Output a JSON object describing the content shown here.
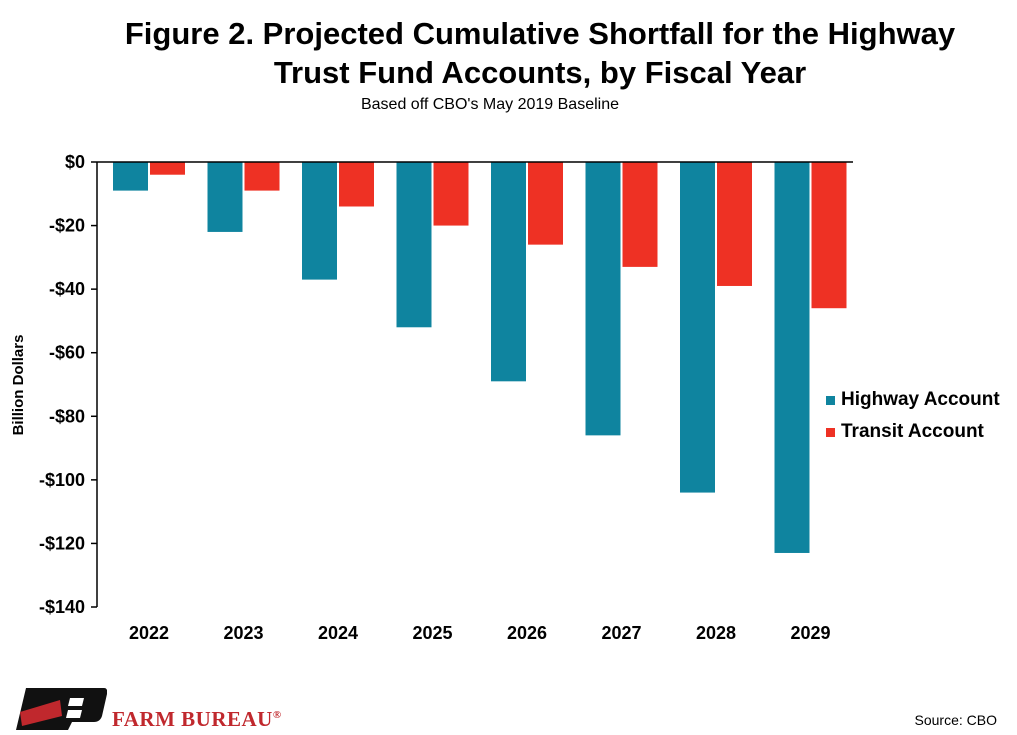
{
  "chart_data": {
    "type": "bar",
    "title": "Figure 2. Projected Cumulative Shortfall for the Highway Trust Fund Accounts, by Fiscal Year",
    "subtitle": "Based off CBO's May 2019 Baseline",
    "ylabel": "Billion  Dollars",
    "xlabel": "",
    "categories": [
      "2022",
      "2023",
      "2024",
      "2025",
      "2026",
      "2027",
      "2028",
      "2029"
    ],
    "series": [
      {
        "name": "Highway Account",
        "color": "#0f849f",
        "values": [
          -9,
          -22,
          -37,
          -52,
          -69,
          -86,
          -104,
          -123
        ]
      },
      {
        "name": "Transit Account",
        "color": "#ee3124",
        "values": [
          -4,
          -9,
          -14,
          -20,
          -26,
          -33,
          -39,
          -46
        ]
      }
    ],
    "ylim": [
      -140,
      0
    ],
    "yticks": [
      0,
      -20,
      -40,
      -60,
      -80,
      -100,
      -120,
      -140
    ],
    "ytick_labels": [
      "$0",
      "-$20",
      "-$40",
      "-$60",
      "-$80",
      "-$100",
      "-$120",
      "-$140"
    ],
    "grid": false,
    "legend_position": "right"
  },
  "title_line1": "Figure 2. Projected Cumulative Shortfall for the Highway",
  "title_line2": "Trust Fund Accounts, by Fiscal Year",
  "subtitle": "Based off CBO's May 2019 Baseline",
  "brand": {
    "name": "FARM BUREAU",
    "mark": "®",
    "color": "#c0282d"
  },
  "source": "Source: CBO"
}
